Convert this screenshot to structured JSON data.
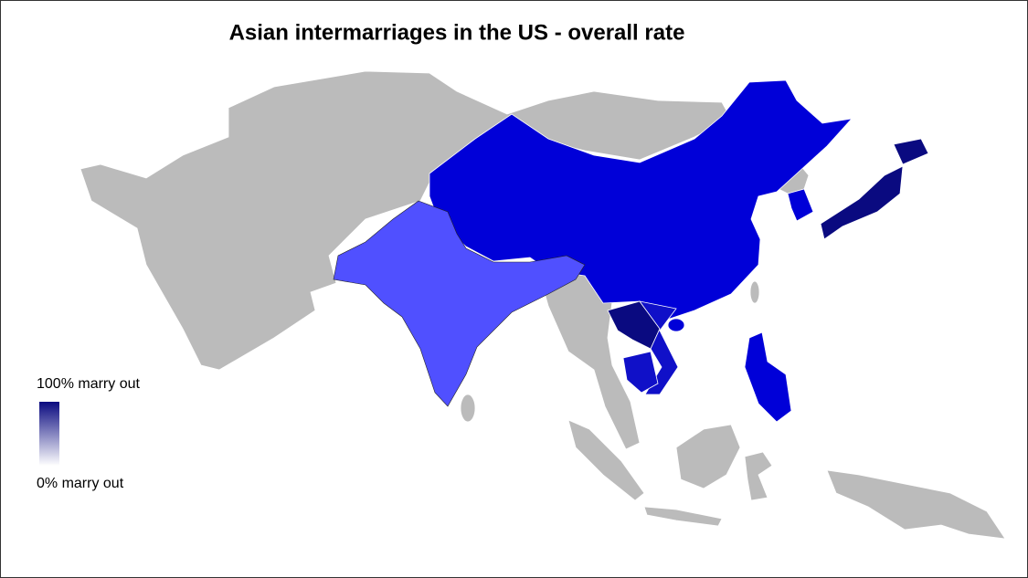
{
  "title": "Asian intermarriages in the US - overall rate",
  "legend": {
    "max_label": "100% marry out",
    "min_label": "0% marry out"
  }
}
